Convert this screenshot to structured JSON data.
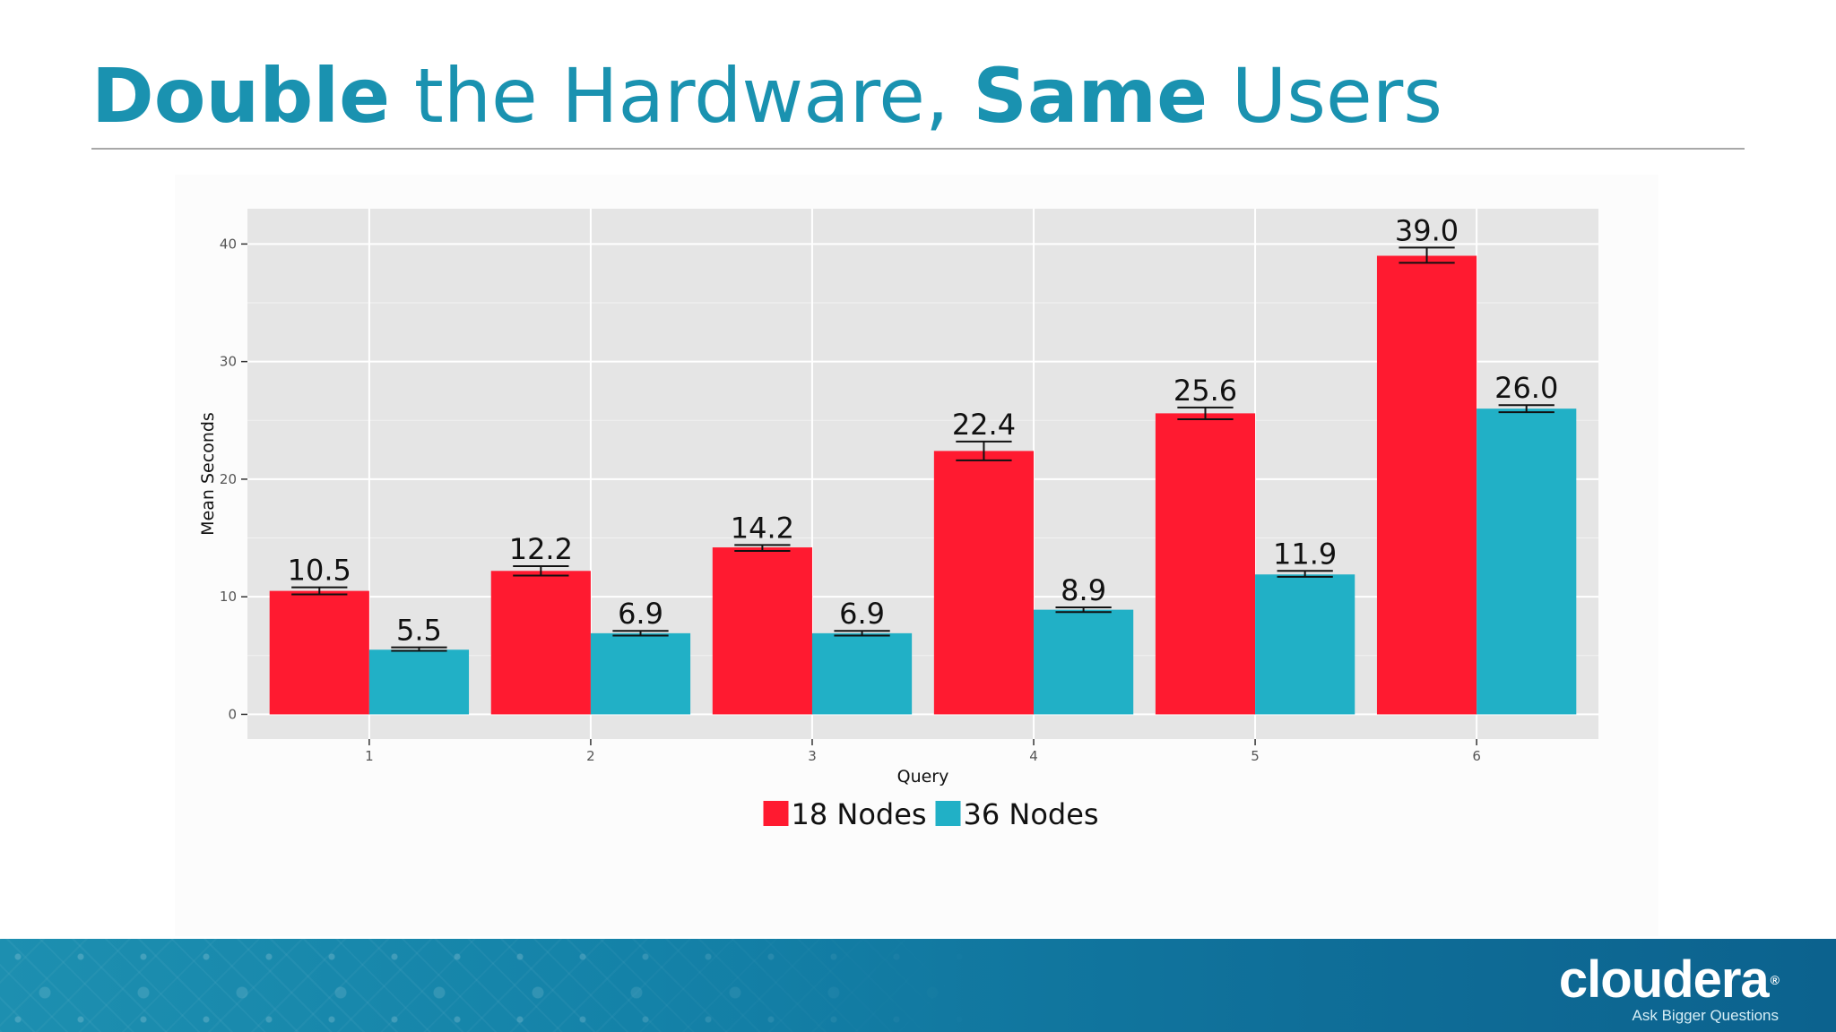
{
  "slide": {
    "title_bold_1": "Double",
    "title_regular_1": " the Hardware, ",
    "title_bold_2": "Same",
    "title_regular_2": " Users"
  },
  "logo": {
    "wordmark": "cloudera",
    "registered": "®",
    "tagline": "Ask Bigger Questions"
  },
  "chart_data": {
    "type": "bar",
    "categories": [
      "1",
      "2",
      "3",
      "4",
      "5",
      "6"
    ],
    "series": [
      {
        "name": "18 Nodes",
        "color": "#ff1a30",
        "values": [
          10.5,
          12.2,
          14.2,
          22.4,
          25.6,
          39.0
        ],
        "labels": [
          "10.5",
          "12.2",
          "14.2",
          "22.4",
          "25.6",
          "39.0"
        ],
        "error_low": [
          10.2,
          11.8,
          13.9,
          21.6,
          25.1,
          38.4
        ],
        "error_high": [
          10.8,
          12.6,
          14.4,
          23.2,
          26.1,
          39.7
        ]
      },
      {
        "name": "36 Nodes",
        "color": "#21b0c6",
        "values": [
          5.5,
          6.9,
          6.9,
          8.9,
          11.9,
          26.0
        ],
        "labels": [
          "5.5",
          "6.9",
          "6.9",
          "8.9",
          "11.9",
          "26.0"
        ],
        "error_low": [
          5.4,
          6.7,
          6.7,
          8.7,
          11.7,
          25.7
        ],
        "error_high": [
          5.7,
          7.1,
          7.1,
          9.1,
          12.2,
          26.3
        ]
      }
    ],
    "xlabel": "Query",
    "ylabel": "Mean Seconds",
    "yticks": [
      0,
      10,
      20,
      30,
      40
    ],
    "ylim": [
      -2.1,
      43.0
    ],
    "grid": true,
    "legend_position": "bottom",
    "panel_color": "#e5e5e5",
    "grid_color": "#ffffff"
  }
}
